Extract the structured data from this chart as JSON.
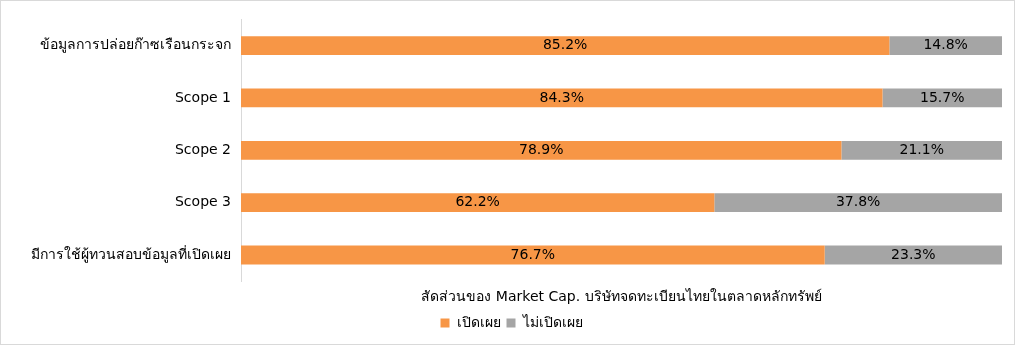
{
  "chart_data": {
    "type": "bar",
    "orientation": "horizontal",
    "stacked": true,
    "categories": [
      "ข้อมูลการปล่อยก๊าซเรือนกระจก",
      "Scope 1",
      "Scope 2",
      "Scope 3",
      "มีการใช้ผู้ทวนสอบข้อมูลที่เปิดเผย"
    ],
    "series": [
      {
        "name": "เปิดเผย",
        "color": "#f79646",
        "values": [
          85.2,
          84.3,
          78.9,
          62.2,
          76.7
        ],
        "value_labels": [
          "85.2%",
          "84.3%",
          "78.9%",
          "62.2%",
          "76.7%"
        ]
      },
      {
        "name": "ไม่เปิดเผย",
        "color": "#a5a5a5",
        "values": [
          14.8,
          15.7,
          21.1,
          37.8,
          23.3
        ],
        "value_labels": [
          "14.8%",
          "15.7%",
          "21.1%",
          "37.8%",
          "23.3%"
        ]
      }
    ],
    "xlabel": "สัดส่วนของ Market Cap. บริษัทจดทะเบียนไทยในตลาดหลักทรัพย์",
    "legend": "bottom",
    "grid": false,
    "tick_labels": "y"
  }
}
